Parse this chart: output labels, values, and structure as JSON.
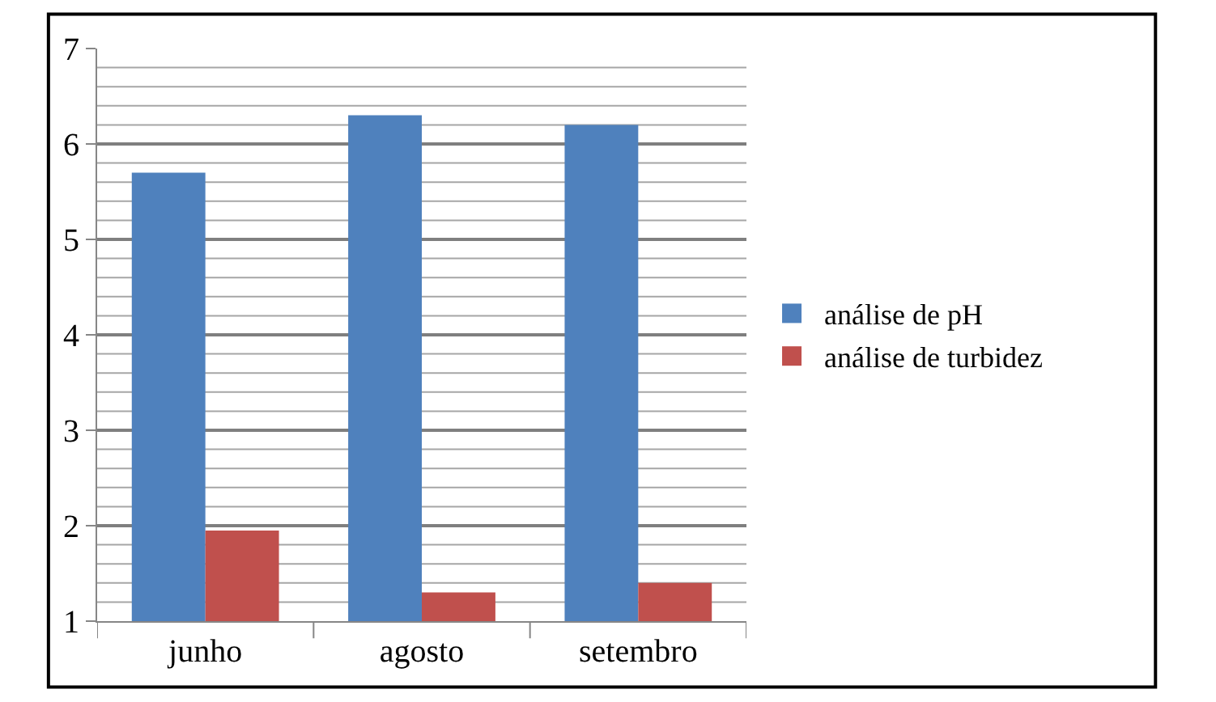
{
  "chart_data": {
    "type": "bar",
    "categories": [
      "junho",
      "agosto",
      "setembro"
    ],
    "series": [
      {
        "name": "análise de pH",
        "color": "#4f81bd",
        "values": [
          5.7,
          6.3,
          6.2
        ]
      },
      {
        "name": "análise de turbidez",
        "color": "#c0504d",
        "values": [
          1.95,
          1.3,
          1.4
        ]
      }
    ],
    "ylim": [
      1,
      7
    ],
    "yticks": [
      1,
      {
        "value": 1.2,
        "label": null
      },
      {
        "value": 1.4,
        "label": null
      },
      {
        "value": 1.6,
        "label": null
      },
      {
        "value": 1.8,
        "label": null
      },
      2,
      {
        "value": 2.2,
        "label": null
      },
      {
        "value": 2.4,
        "label": null
      },
      {
        "value": 2.6,
        "label": null
      },
      {
        "value": 2.8,
        "label": null
      },
      3,
      {
        "value": 3.2,
        "label": null
      },
      {
        "value": 3.4,
        "label": null
      },
      {
        "value": 3.6,
        "label": null
      },
      {
        "value": 3.8,
        "label": null
      },
      4,
      {
        "value": 4.2,
        "label": null
      },
      {
        "value": 4.4,
        "label": null
      },
      {
        "value": 4.6,
        "label": null
      },
      {
        "value": 4.8,
        "label": null
      },
      5,
      {
        "value": 5.2,
        "label": null
      },
      {
        "value": 5.4,
        "label": null
      },
      {
        "value": 5.6,
        "label": null
      },
      {
        "value": 5.8,
        "label": null
      },
      6,
      {
        "value": 6.2,
        "label": null
      },
      {
        "value": 6.4,
        "label": null
      },
      {
        "value": 6.6,
        "label": null
      },
      {
        "value": 6.8,
        "label": null
      },
      7
    ],
    "grid": "y",
    "legend": "right"
  }
}
